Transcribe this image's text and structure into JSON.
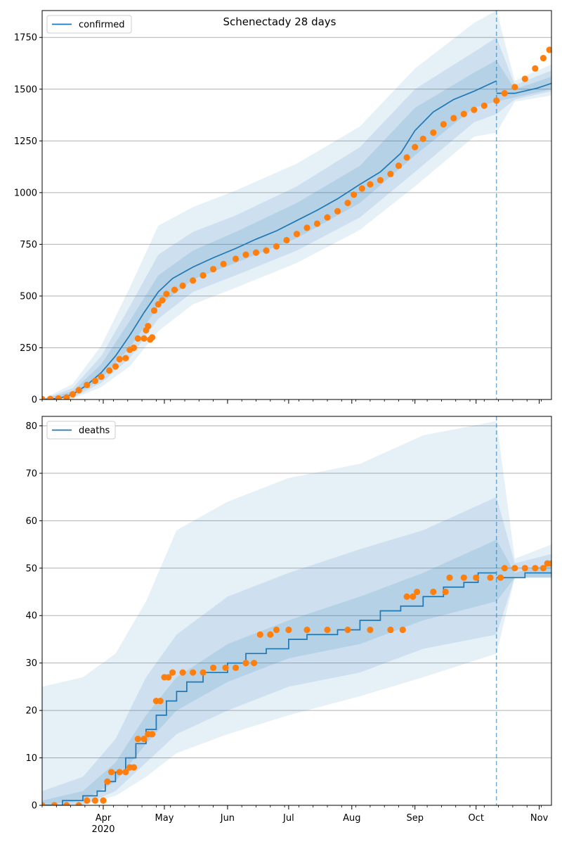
{
  "title": "Schenectady 28 days",
  "colors": {
    "line": "#1f77b4",
    "observed": "#ff7f0e",
    "band": "#1f77b4",
    "grid": "#b0b0b0"
  },
  "chart_data": [
    {
      "type": "line",
      "title": "Schenectady 28 days",
      "legend": [
        "confirmed"
      ],
      "legend_position": "upper-left",
      "ylim": [
        0,
        1880
      ],
      "yticks": [
        0,
        250,
        500,
        750,
        1000,
        1250,
        1500,
        1750
      ],
      "ytick_labels": [
        "0",
        "250",
        "500",
        "750",
        "1000",
        "1250",
        "1500",
        "1750"
      ],
      "grid": "y",
      "x_start": "2020-03-02",
      "x_end": "2020-11-07",
      "forecast_date": "2020-10-11",
      "xtick_labels": [
        "Apr",
        "May",
        "Jun",
        "Jul",
        "Aug",
        "Sep",
        "Oct",
        "Nov"
      ],
      "xtick_dates": [
        "2020-04-01",
        "2020-05-01",
        "2020-06-01",
        "2020-07-01",
        "2020-08-01",
        "2020-09-01",
        "2020-10-01",
        "2020-11-01"
      ],
      "year_label": "2020",
      "model_median": [
        [
          "2020-03-02",
          0
        ],
        [
          "2020-03-10",
          5
        ],
        [
          "2020-03-17",
          25
        ],
        [
          "2020-03-24",
          70
        ],
        [
          "2020-03-31",
          130
        ],
        [
          "2020-04-07",
          210
        ],
        [
          "2020-04-14",
          310
        ],
        [
          "2020-04-21",
          420
        ],
        [
          "2020-04-28",
          520
        ],
        [
          "2020-05-05",
          585
        ],
        [
          "2020-05-15",
          640
        ],
        [
          "2020-05-25",
          685
        ],
        [
          "2020-06-05",
          730
        ],
        [
          "2020-06-15",
          775
        ],
        [
          "2020-06-25",
          815
        ],
        [
          "2020-07-05",
          865
        ],
        [
          "2020-07-15",
          915
        ],
        [
          "2020-07-25",
          970
        ],
        [
          "2020-08-05",
          1040
        ],
        [
          "2020-08-15",
          1100
        ],
        [
          "2020-08-25",
          1190
        ],
        [
          "2020-09-01",
          1300
        ],
        [
          "2020-09-10",
          1390
        ],
        [
          "2020-09-20",
          1450
        ],
        [
          "2020-09-30",
          1490
        ],
        [
          "2020-10-11",
          1540
        ],
        [
          "2020-10-20",
          1480
        ],
        [
          "2020-10-31",
          1505
        ],
        [
          "2020-11-07",
          1528
        ]
      ],
      "band_inner": [
        [
          "2020-03-02",
          0,
          0
        ],
        [
          "2020-03-17",
          15,
          40
        ],
        [
          "2020-03-31",
          100,
          170
        ],
        [
          "2020-04-14",
          250,
          380
        ],
        [
          "2020-04-28",
          450,
          600
        ],
        [
          "2020-05-15",
          580,
          720
        ],
        [
          "2020-06-05",
          660,
          810
        ],
        [
          "2020-07-05",
          780,
          950
        ],
        [
          "2020-08-05",
          950,
          1130
        ],
        [
          "2020-09-01",
          1180,
          1410
        ],
        [
          "2020-09-30",
          1410,
          1580
        ],
        [
          "2020-10-11",
          1440,
          1640
        ],
        [
          "2020-10-20",
          1460,
          1500
        ],
        [
          "2020-11-07",
          1500,
          1560
        ]
      ],
      "band_mid": [
        [
          "2020-03-02",
          0,
          0
        ],
        [
          "2020-03-17",
          8,
          55
        ],
        [
          "2020-03-31",
          80,
          210
        ],
        [
          "2020-04-14",
          200,
          450
        ],
        [
          "2020-04-28",
          390,
          700
        ],
        [
          "2020-05-15",
          520,
          810
        ],
        [
          "2020-06-05",
          600,
          890
        ],
        [
          "2020-07-05",
          720,
          1030
        ],
        [
          "2020-08-05",
          880,
          1220
        ],
        [
          "2020-09-01",
          1100,
          1500
        ],
        [
          "2020-09-30",
          1340,
          1680
        ],
        [
          "2020-10-11",
          1380,
          1750
        ],
        [
          "2020-10-20",
          1450,
          1520
        ],
        [
          "2020-11-07",
          1490,
          1590
        ]
      ],
      "band_outer": [
        [
          "2020-03-02",
          0,
          0
        ],
        [
          "2020-03-17",
          3,
          75
        ],
        [
          "2020-03-31",
          60,
          260
        ],
        [
          "2020-04-14",
          160,
          540
        ],
        [
          "2020-04-28",
          330,
          840
        ],
        [
          "2020-05-15",
          460,
          930
        ],
        [
          "2020-06-05",
          540,
          1010
        ],
        [
          "2020-07-05",
          660,
          1140
        ],
        [
          "2020-08-05",
          820,
          1320
        ],
        [
          "2020-09-01",
          1030,
          1600
        ],
        [
          "2020-09-30",
          1270,
          1820
        ],
        [
          "2020-10-11",
          1290,
          1880
        ],
        [
          "2020-10-20",
          1440,
          1540
        ],
        [
          "2020-11-07",
          1470,
          1620
        ]
      ],
      "observed": [
        [
          "2020-03-02",
          2
        ],
        [
          "2020-03-06",
          3
        ],
        [
          "2020-03-10",
          5
        ],
        [
          "2020-03-14",
          10
        ],
        [
          "2020-03-17",
          25
        ],
        [
          "2020-03-20",
          45
        ],
        [
          "2020-03-24",
          70
        ],
        [
          "2020-03-28",
          90
        ],
        [
          "2020-03-31",
          110
        ],
        [
          "2020-04-04",
          140
        ],
        [
          "2020-04-07",
          160
        ],
        [
          "2020-04-09",
          195
        ],
        [
          "2020-04-12",
          200
        ],
        [
          "2020-04-14",
          240
        ],
        [
          "2020-04-16",
          250
        ],
        [
          "2020-04-18",
          295
        ],
        [
          "2020-04-21",
          295
        ],
        [
          "2020-04-22",
          335
        ],
        [
          "2020-04-23",
          355
        ],
        [
          "2020-04-24",
          290
        ],
        [
          "2020-04-25",
          300
        ],
        [
          "2020-04-26",
          430
        ],
        [
          "2020-04-28",
          460
        ],
        [
          "2020-04-30",
          480
        ],
        [
          "2020-05-02",
          510
        ],
        [
          "2020-05-06",
          530
        ],
        [
          "2020-05-10",
          550
        ],
        [
          "2020-05-15",
          575
        ],
        [
          "2020-05-20",
          600
        ],
        [
          "2020-05-25",
          630
        ],
        [
          "2020-05-30",
          655
        ],
        [
          "2020-06-05",
          680
        ],
        [
          "2020-06-10",
          700
        ],
        [
          "2020-06-15",
          710
        ],
        [
          "2020-06-20",
          720
        ],
        [
          "2020-06-25",
          740
        ],
        [
          "2020-06-30",
          770
        ],
        [
          "2020-07-05",
          800
        ],
        [
          "2020-07-10",
          830
        ],
        [
          "2020-07-15",
          850
        ],
        [
          "2020-07-20",
          880
        ],
        [
          "2020-07-25",
          910
        ],
        [
          "2020-07-30",
          950
        ],
        [
          "2020-08-02",
          990
        ],
        [
          "2020-08-06",
          1020
        ],
        [
          "2020-08-10",
          1040
        ],
        [
          "2020-08-15",
          1060
        ],
        [
          "2020-08-20",
          1090
        ],
        [
          "2020-08-24",
          1130
        ],
        [
          "2020-08-28",
          1170
        ],
        [
          "2020-09-01",
          1220
        ],
        [
          "2020-09-05",
          1260
        ],
        [
          "2020-09-10",
          1290
        ],
        [
          "2020-09-15",
          1330
        ],
        [
          "2020-09-20",
          1360
        ],
        [
          "2020-09-25",
          1380
        ],
        [
          "2020-09-30",
          1400
        ],
        [
          "2020-10-05",
          1420
        ],
        [
          "2020-10-11",
          1445
        ],
        [
          "2020-10-15",
          1480
        ],
        [
          "2020-10-20",
          1510
        ],
        [
          "2020-10-25",
          1550
        ],
        [
          "2020-10-30",
          1600
        ],
        [
          "2020-11-03",
          1650
        ],
        [
          "2020-11-06",
          1690
        ]
      ]
    },
    {
      "type": "line",
      "title": "",
      "legend": [
        "deaths"
      ],
      "legend_position": "upper-left",
      "ylim": [
        0,
        82
      ],
      "yticks": [
        0,
        10,
        20,
        30,
        40,
        50,
        60,
        70,
        80
      ],
      "ytick_labels": [
        "0",
        "10",
        "20",
        "30",
        "40",
        "50",
        "60",
        "70",
        "80"
      ],
      "grid": "y",
      "x_start": "2020-03-02",
      "x_end": "2020-11-07",
      "forecast_date": "2020-10-11",
      "xtick_labels": [
        "Apr",
        "May",
        "Jun",
        "Jul",
        "Aug",
        "Sep",
        "Oct",
        "Nov"
      ],
      "xtick_dates": [
        "2020-04-01",
        "2020-05-01",
        "2020-06-01",
        "2020-07-01",
        "2020-08-01",
        "2020-09-01",
        "2020-10-01",
        "2020-11-01"
      ],
      "year_label": "2020",
      "model_median": [
        [
          "2020-03-02",
          0
        ],
        [
          "2020-03-12",
          1
        ],
        [
          "2020-03-22",
          2
        ],
        [
          "2020-03-29",
          3
        ],
        [
          "2020-04-02",
          5
        ],
        [
          "2020-04-07",
          7
        ],
        [
          "2020-04-12",
          10
        ],
        [
          "2020-04-17",
          13
        ],
        [
          "2020-04-22",
          16
        ],
        [
          "2020-04-27",
          19
        ],
        [
          "2020-05-02",
          22
        ],
        [
          "2020-05-07",
          24
        ],
        [
          "2020-05-12",
          26
        ],
        [
          "2020-05-20",
          28
        ],
        [
          "2020-06-01",
          30
        ],
        [
          "2020-06-10",
          32
        ],
        [
          "2020-06-20",
          33
        ],
        [
          "2020-07-01",
          35
        ],
        [
          "2020-07-10",
          36
        ],
        [
          "2020-07-25",
          37
        ],
        [
          "2020-08-05",
          39
        ],
        [
          "2020-08-15",
          41
        ],
        [
          "2020-08-25",
          42
        ],
        [
          "2020-09-05",
          44
        ],
        [
          "2020-09-15",
          46
        ],
        [
          "2020-09-25",
          47
        ],
        [
          "2020-10-02",
          49
        ],
        [
          "2020-10-11",
          49
        ],
        [
          "2020-10-20",
          48
        ],
        [
          "2020-10-25",
          49
        ],
        [
          "2020-11-07",
          49
        ]
      ],
      "band_inner": [
        [
          "2020-03-02",
          0,
          1
        ],
        [
          "2020-03-22",
          1,
          3
        ],
        [
          "2020-04-07",
          5,
          9
        ],
        [
          "2020-04-22",
          13,
          19
        ],
        [
          "2020-05-07",
          20,
          27
        ],
        [
          "2020-06-01",
          26,
          34
        ],
        [
          "2020-07-01",
          31,
          39
        ],
        [
          "2020-08-05",
          34,
          44
        ],
        [
          "2020-09-05",
          39,
          49
        ],
        [
          "2020-10-11",
          43,
          56
        ],
        [
          "2020-10-20",
          48,
          49
        ],
        [
          "2020-11-07",
          48,
          51
        ]
      ],
      "band_mid": [
        [
          "2020-03-02",
          0,
          3
        ],
        [
          "2020-03-22",
          0,
          6
        ],
        [
          "2020-04-07",
          3,
          14
        ],
        [
          "2020-04-22",
          9,
          27
        ],
        [
          "2020-05-07",
          15,
          36
        ],
        [
          "2020-06-01",
          20,
          44
        ],
        [
          "2020-07-01",
          25,
          49
        ],
        [
          "2020-08-05",
          28,
          54
        ],
        [
          "2020-09-05",
          33,
          58
        ],
        [
          "2020-10-11",
          36,
          65
        ],
        [
          "2020-10-20",
          48,
          51
        ],
        [
          "2020-11-07",
          48,
          53
        ]
      ],
      "band_outer": [
        [
          "2020-03-02",
          0,
          25
        ],
        [
          "2020-03-22",
          0,
          27
        ],
        [
          "2020-04-07",
          2,
          32
        ],
        [
          "2020-04-22",
          6,
          43
        ],
        [
          "2020-05-07",
          11,
          58
        ],
        [
          "2020-06-01",
          15,
          64
        ],
        [
          "2020-07-01",
          19,
          69
        ],
        [
          "2020-08-05",
          23,
          72
        ],
        [
          "2020-09-05",
          27,
          78
        ],
        [
          "2020-10-11",
          32,
          81
        ],
        [
          "2020-10-20",
          48,
          52
        ],
        [
          "2020-11-07",
          48,
          55
        ]
      ],
      "observed": [
        [
          "2020-03-02",
          0
        ],
        [
          "2020-03-08",
          0
        ],
        [
          "2020-03-14",
          0
        ],
        [
          "2020-03-20",
          0
        ],
        [
          "2020-03-24",
          1
        ],
        [
          "2020-03-28",
          1
        ],
        [
          "2020-04-01",
          1
        ],
        [
          "2020-04-03",
          5
        ],
        [
          "2020-04-05",
          7
        ],
        [
          "2020-04-09",
          7
        ],
        [
          "2020-04-12",
          7
        ],
        [
          "2020-04-14",
          8
        ],
        [
          "2020-04-16",
          8
        ],
        [
          "2020-04-18",
          14
        ],
        [
          "2020-04-21",
          14
        ],
        [
          "2020-04-23",
          15
        ],
        [
          "2020-04-25",
          15
        ],
        [
          "2020-04-27",
          22
        ],
        [
          "2020-04-29",
          22
        ],
        [
          "2020-05-01",
          27
        ],
        [
          "2020-05-03",
          27
        ],
        [
          "2020-05-05",
          28
        ],
        [
          "2020-05-10",
          28
        ],
        [
          "2020-05-15",
          28
        ],
        [
          "2020-05-20",
          28
        ],
        [
          "2020-05-25",
          29
        ],
        [
          "2020-05-31",
          29
        ],
        [
          "2020-06-05",
          29
        ],
        [
          "2020-06-10",
          30
        ],
        [
          "2020-06-14",
          30
        ],
        [
          "2020-06-17",
          36
        ],
        [
          "2020-06-22",
          36
        ],
        [
          "2020-06-25",
          37
        ],
        [
          "2020-07-01",
          37
        ],
        [
          "2020-07-10",
          37
        ],
        [
          "2020-07-20",
          37
        ],
        [
          "2020-07-30",
          37
        ],
        [
          "2020-08-10",
          37
        ],
        [
          "2020-08-20",
          37
        ],
        [
          "2020-08-26",
          37
        ],
        [
          "2020-08-28",
          44
        ],
        [
          "2020-08-31",
          44
        ],
        [
          "2020-09-02",
          45
        ],
        [
          "2020-09-10",
          45
        ],
        [
          "2020-09-16",
          45
        ],
        [
          "2020-09-18",
          48
        ],
        [
          "2020-09-25",
          48
        ],
        [
          "2020-10-01",
          48
        ],
        [
          "2020-10-08",
          48
        ],
        [
          "2020-10-13",
          48
        ],
        [
          "2020-10-15",
          50
        ],
        [
          "2020-10-20",
          50
        ],
        [
          "2020-10-25",
          50
        ],
        [
          "2020-10-30",
          50
        ],
        [
          "2020-11-03",
          50
        ],
        [
          "2020-11-05",
          51
        ],
        [
          "2020-11-07",
          51
        ]
      ]
    }
  ]
}
